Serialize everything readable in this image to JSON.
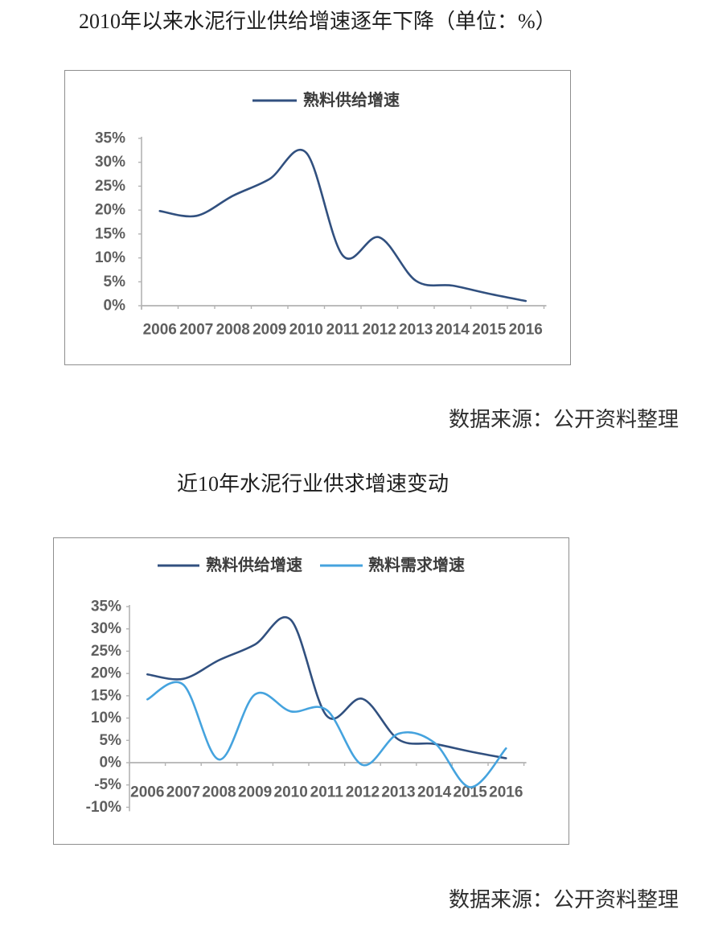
{
  "figures": [
    {
      "title": "2010年以来水泥行业供给增速逐年下降（单位：%）",
      "source": "数据来源：公开资料整理"
    },
    {
      "title": "近10年水泥行业供求增速变动",
      "source": "数据来源：公开资料整理"
    }
  ],
  "colors": {
    "supply_line": "#31507f",
    "demand_line": "#45a3de",
    "axis": "#b3b3b3",
    "tick_label": "#5f5f5f",
    "panel_border": "#8e8e8e"
  },
  "chart_data": [
    {
      "type": "line",
      "title": "2010年以来水泥行业供给增速逐年下降（单位：%）",
      "categories": [
        "2006",
        "2007",
        "2008",
        "2009",
        "2010",
        "2011",
        "2012",
        "2013",
        "2014",
        "2015",
        "2016"
      ],
      "series": [
        {
          "name": "熟料供给增速",
          "color": "#31507f",
          "values": [
            19.8,
            18.8,
            23.0,
            26.5,
            32.0,
            10.5,
            14.3,
            5.2,
            4.2,
            2.5,
            1.0
          ]
        }
      ],
      "xlabel": "",
      "ylabel": "",
      "ylim": [
        0,
        35
      ],
      "ytick_step": 5,
      "yticks": [
        "0%",
        "5%",
        "10%",
        "15%",
        "20%",
        "25%",
        "30%",
        "35%"
      ],
      "grid": false,
      "legend_position": "top",
      "line_style": "smooth"
    },
    {
      "type": "line",
      "title": "近10年水泥行业供求增速变动",
      "categories": [
        "2006",
        "2007",
        "2008",
        "2009",
        "2010",
        "2011",
        "2012",
        "2013",
        "2014",
        "2015",
        "2016"
      ],
      "series": [
        {
          "name": "熟料供给增速",
          "color": "#31507f",
          "values": [
            19.8,
            18.8,
            23.0,
            26.5,
            32.0,
            10.5,
            14.3,
            5.2,
            4.2,
            2.5,
            1.0
          ]
        },
        {
          "name": "熟料需求增速",
          "color": "#45a3de",
          "values": [
            14.2,
            17.5,
            0.7,
            15.3,
            11.5,
            11.8,
            -0.5,
            6.5,
            4.5,
            -5.5,
            3.2
          ]
        }
      ],
      "xlabel": "",
      "ylabel": "",
      "ylim": [
        -10,
        35
      ],
      "ytick_step": 5,
      "yticks": [
        "-10%",
        "-5%",
        "0%",
        "5%",
        "10%",
        "15%",
        "20%",
        "25%",
        "30%",
        "35%"
      ],
      "grid": false,
      "legend_position": "top",
      "line_style": "smooth"
    }
  ]
}
